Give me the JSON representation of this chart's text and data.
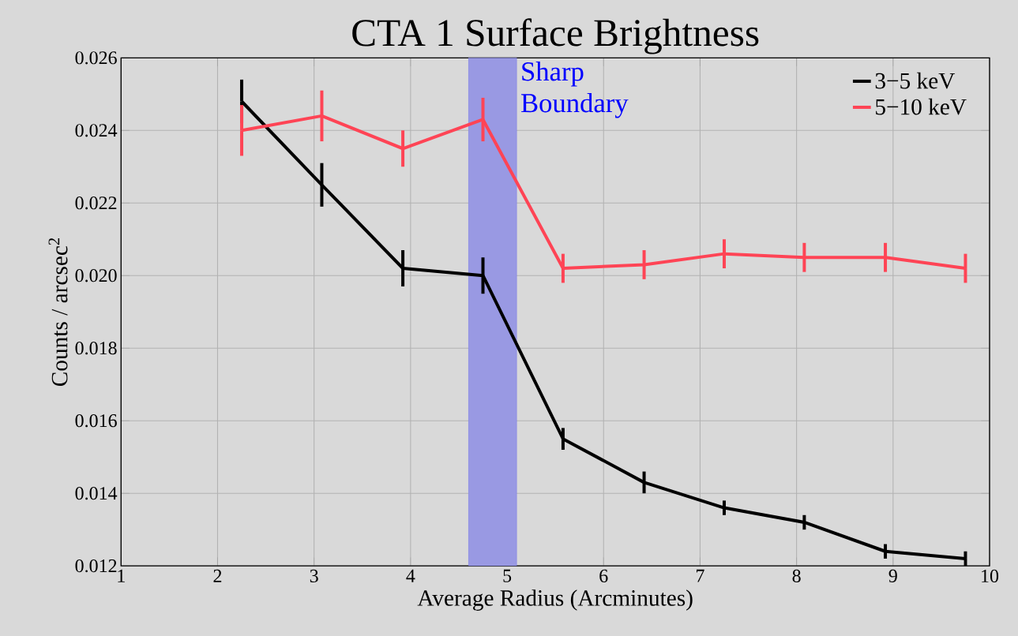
{
  "chart_data": {
    "type": "line",
    "title": "CTA 1 Surface Brightness",
    "xlabel": "Average Radius (Arcminutes)",
    "ylabel": "Counts / arcsec$^{2}$",
    "xlim": [
      1,
      10
    ],
    "ylim": [
      0.012,
      0.026
    ],
    "xticks": [
      1,
      2,
      3,
      4,
      5,
      6,
      7,
      8,
      9,
      10
    ],
    "yticks": [
      {
        "value": 0.012,
        "label": "0.012"
      },
      {
        "value": 0.014,
        "label": "0.014"
      },
      {
        "value": 0.016,
        "label": "0.016"
      },
      {
        "value": 0.018,
        "label": "0.018"
      },
      {
        "value": 0.02,
        "label": "0.020"
      },
      {
        "value": 0.022,
        "label": "0.022"
      },
      {
        "value": 0.024,
        "label": "0.024"
      },
      {
        "value": 0.026,
        "label": "0.026"
      }
    ],
    "grid": true,
    "legend": "top right",
    "marker": "none",
    "line_style": "solid",
    "x": [
      2.25,
      3.08,
      3.92,
      4.75,
      5.58,
      6.42,
      7.25,
      8.08,
      8.92,
      9.75
    ],
    "series": [
      {
        "name": "3−5 keV",
        "color": "#000000",
        "values": [
          0.0248,
          0.0225,
          0.0202,
          0.02,
          0.0155,
          0.0143,
          0.0136,
          0.0132,
          0.0124,
          0.0122
        ],
        "errors": [
          0.0006,
          0.0006,
          0.0005,
          0.0005,
          0.0003,
          0.0003,
          0.0002,
          0.0002,
          0.0002,
          0.0002
        ]
      },
      {
        "name": "5−10 keV",
        "color": "#ff4455",
        "values": [
          0.024,
          0.0244,
          0.0235,
          0.0243,
          0.0202,
          0.0203,
          0.0206,
          0.0205,
          0.0205,
          0.0202
        ],
        "errors": [
          0.0007,
          0.0007,
          0.0005,
          0.0006,
          0.0004,
          0.0004,
          0.0004,
          0.0004,
          0.0004,
          0.0004
        ]
      }
    ],
    "bands": [
      {
        "axis": "x",
        "from": 4.6,
        "to": 5.1,
        "label": "Sharp Boundary",
        "color": "#9999e3"
      }
    ]
  }
}
